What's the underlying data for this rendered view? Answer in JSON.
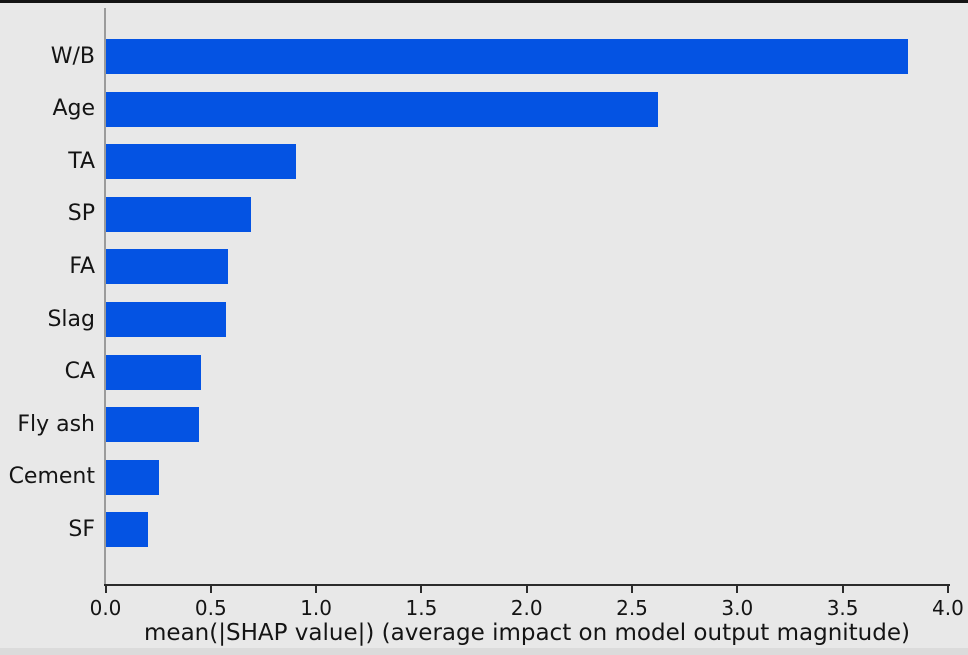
{
  "figure": {
    "background_color": "#e8e8e8",
    "top_border_color": "#141414",
    "bottom_strip_color": "#dbdbdb",
    "text_color": "#141414",
    "left_spine_color": "#9b9b9b",
    "axis_line_color": "#2b2b2b"
  },
  "chart_data": {
    "type": "bar",
    "orientation": "horizontal",
    "title": "",
    "xlabel": "mean(|SHAP value|) (average impact on model output magnitude)",
    "ylabel": "",
    "categories": [
      "W/B",
      "Age",
      "TA",
      "SP",
      "FA",
      "Slag",
      "CA",
      "Fly ash",
      "Cement",
      "SF"
    ],
    "values": [
      3.81,
      2.62,
      0.9,
      0.69,
      0.58,
      0.57,
      0.45,
      0.44,
      0.25,
      0.2
    ],
    "xlim": [
      0.0,
      4.0
    ],
    "x_tick_values": [
      0.0,
      0.5,
      1.0,
      1.5,
      2.0,
      2.5,
      3.0,
      3.5,
      4.0
    ],
    "x_tick_labels": [
      "0.0",
      "0.5",
      "1.0",
      "1.5",
      "2.0",
      "2.5",
      "3.0",
      "3.5",
      "4.0"
    ],
    "grid": false,
    "legend": "none",
    "bar_color": "#0453e3"
  }
}
